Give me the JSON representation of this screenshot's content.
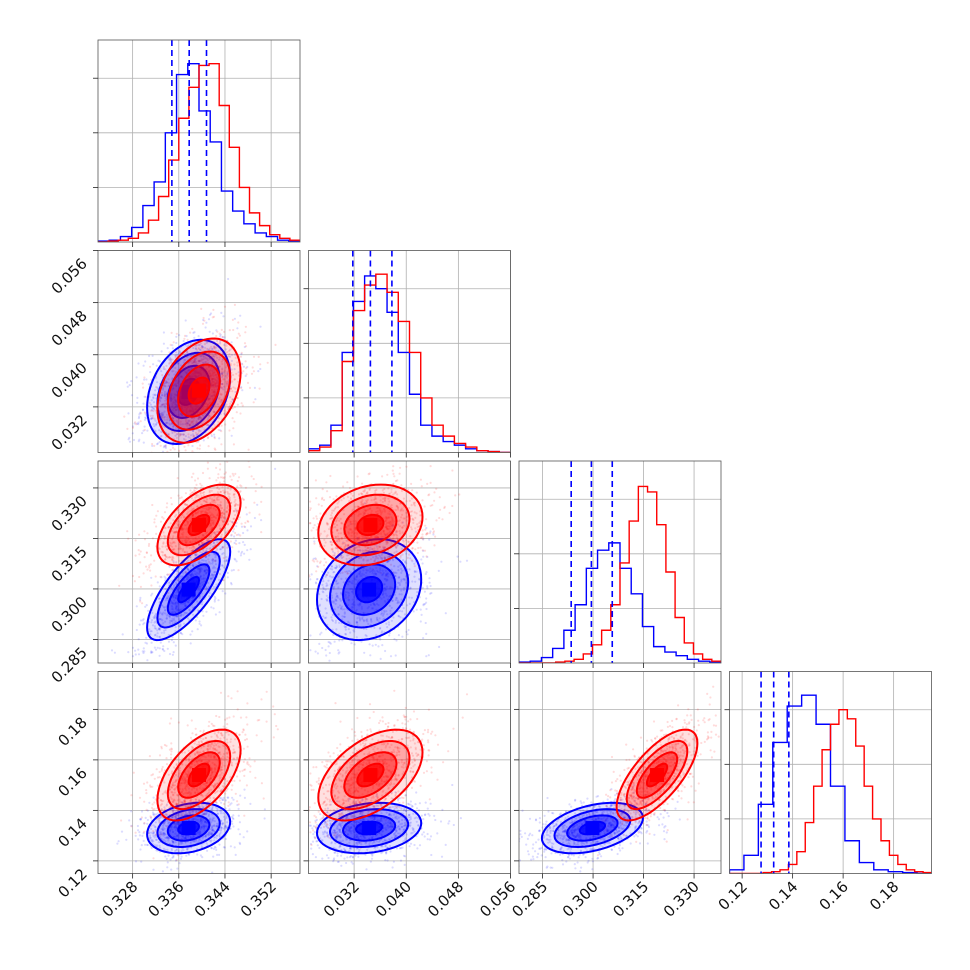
{
  "chart_data": {
    "type": "corner",
    "colors": {
      "series_a": "#0000ff",
      "series_b": "#ff0000"
    },
    "parameters": [
      {
        "range": [
          0.322,
          0.357
        ],
        "ticks": [
          "0.328",
          "0.336",
          "0.344",
          "0.352"
        ],
        "tick_values": [
          0.328,
          0.336,
          0.344,
          0.352
        ],
        "quantiles": [
          0.3348,
          0.3378,
          0.3408
        ],
        "hist_a": [
          0.5,
          1,
          3,
          8,
          20,
          33,
          60,
          92,
          98,
          72,
          55,
          28,
          17,
          10,
          5,
          3,
          1,
          0.5
        ],
        "hist_b": [
          0,
          0.5,
          1,
          2,
          5,
          12,
          25,
          45,
          68,
          85,
          97,
          98,
          75,
          52,
          30,
          16,
          9,
          4,
          2,
          1
        ]
      },
      {
        "range": [
          0.025,
          0.056
        ],
        "ticks": [
          "0.032",
          "0.040",
          "0.048",
          "0.056"
        ],
        "tick_values": [
          0.032,
          0.04,
          0.048,
          0.056
        ],
        "quantiles": [
          0.0318,
          0.0345,
          0.0378
        ],
        "hist_a": [
          2,
          4,
          15,
          55,
          83,
          97,
          90,
          77,
          55,
          32,
          15,
          9,
          6,
          4,
          2,
          1,
          0.5,
          0
        ],
        "hist_b": [
          1,
          3,
          12,
          50,
          78,
          92,
          98,
          88,
          72,
          55,
          30,
          15,
          9,
          5,
          3,
          1,
          0.5,
          0
        ]
      },
      {
        "range": [
          0.278,
          0.338
        ],
        "ticks": [
          "0.285",
          "0.300",
          "0.315",
          "0.330"
        ],
        "tick_values": [
          0.285,
          0.3,
          0.315,
          0.33
        ],
        "quantiles": [
          0.2935,
          0.2995,
          0.3057
        ],
        "hist_a": [
          0.5,
          1,
          3,
          8,
          18,
          32,
          52,
          62,
          66,
          52,
          38,
          20,
          9,
          6,
          4,
          2,
          1,
          0.5
        ],
        "hist_b": [
          0,
          0,
          0,
          0,
          0.5,
          1,
          2,
          5,
          10,
          18,
          32,
          55,
          78,
          97,
          94,
          76,
          50,
          25,
          11,
          5,
          2,
          1
        ]
      },
      {
        "range": [
          0.115,
          0.195
        ],
        "ticks": [
          "0.12",
          "0.14",
          "0.16",
          "0.18"
        ],
        "tick_values": [
          0.12,
          0.14,
          0.16,
          0.18
        ],
        "quantiles": [
          0.1275,
          0.1325,
          0.1385
        ],
        "hist_a": [
          2,
          10,
          38,
          72,
          92,
          98,
          82,
          48,
          18,
          6,
          2,
          1,
          0.5,
          0
        ],
        "hist_b": [
          0,
          0,
          0,
          0,
          0.5,
          1,
          2,
          5,
          12,
          28,
          48,
          68,
          82,
          90,
          85,
          70,
          48,
          30,
          18,
          10,
          5,
          2,
          1,
          0.5
        ]
      }
    ],
    "series_a": {
      "mean": [
        0.3377,
        0.0343,
        0.2998,
        0.133
      ],
      "std": [
        0.0036,
        0.004,
        0.0075,
        0.005
      ],
      "corr": [
        [
          1,
          0.3,
          0.75,
          0.25
        ],
        [
          0.3,
          1,
          0.2,
          0.2
        ],
        [
          0.75,
          0.2,
          1,
          0.4
        ],
        [
          0.25,
          0.2,
          0.4,
          1
        ]
      ]
    },
    "series_b": {
      "mean": [
        0.3395,
        0.0345,
        0.319,
        0.154
      ],
      "std": [
        0.0036,
        0.004,
        0.006,
        0.009
      ],
      "corr": [
        [
          1,
          0.35,
          0.55,
          0.55
        ],
        [
          0.35,
          1,
          0.2,
          0.5
        ],
        [
          0.55,
          0.2,
          1,
          0.7
        ],
        [
          0.55,
          0.5,
          0.7,
          1
        ]
      ]
    },
    "grid": true,
    "title": "",
    "xlabels": [
      "",
      "",
      "",
      ""
    ],
    "ylabels": [
      "",
      "",
      "",
      ""
    ]
  }
}
